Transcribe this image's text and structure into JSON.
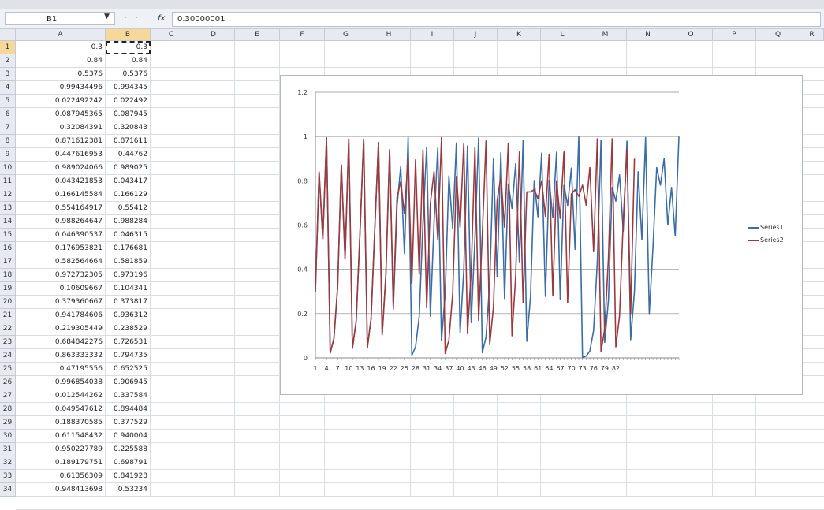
{
  "formula_bar": {
    "name_box": "B1",
    "fx_symbol": "fx",
    "formula_value": "0.30000001"
  },
  "columns": [
    "A",
    "B",
    "C",
    "D",
    "E",
    "F",
    "G",
    "H",
    "I",
    "J",
    "K",
    "L",
    "M",
    "N",
    "O",
    "P",
    "Q",
    "R"
  ],
  "selected_column": "B",
  "rows": [
    {
      "n": "1",
      "a": "0.3",
      "b": "0.3"
    },
    {
      "n": "2",
      "a": "0.84",
      "b": "0.84"
    },
    {
      "n": "3",
      "a": "0.5376",
      "b": "0.5376"
    },
    {
      "n": "4",
      "a": "0.99434496",
      "b": "0.994345"
    },
    {
      "n": "5",
      "a": "0.022492242",
      "b": "0.022492"
    },
    {
      "n": "6",
      "a": "0.087945365",
      "b": "0.087945"
    },
    {
      "n": "7",
      "a": "0.32084391",
      "b": "0.320843"
    },
    {
      "n": "8",
      "a": "0.871612381",
      "b": "0.871611"
    },
    {
      "n": "9",
      "a": "0.447616953",
      "b": "0.44762"
    },
    {
      "n": "10",
      "a": "0.989024066",
      "b": "0.989025"
    },
    {
      "n": "11",
      "a": "0.043421853",
      "b": "0.043417"
    },
    {
      "n": "12",
      "a": "0.166145584",
      "b": "0.166129"
    },
    {
      "n": "13",
      "a": "0.554164917",
      "b": "0.55412"
    },
    {
      "n": "14",
      "a": "0.988264647",
      "b": "0.988284"
    },
    {
      "n": "15",
      "a": "0.046390537",
      "b": "0.046315"
    },
    {
      "n": "16",
      "a": "0.176953821",
      "b": "0.176681"
    },
    {
      "n": "17",
      "a": "0.582564664",
      "b": "0.581859"
    },
    {
      "n": "18",
      "a": "0.972732305",
      "b": "0.973196"
    },
    {
      "n": "19",
      "a": "0.10609667",
      "b": "0.104341"
    },
    {
      "n": "20",
      "a": "0.379360667",
      "b": "0.373817"
    },
    {
      "n": "21",
      "a": "0.941784606",
      "b": "0.936312"
    },
    {
      "n": "22",
      "a": "0.219305449",
      "b": "0.238529"
    },
    {
      "n": "23",
      "a": "0.684842276",
      "b": "0.726531"
    },
    {
      "n": "24",
      "a": "0.863333332",
      "b": "0.794735"
    },
    {
      "n": "25",
      "a": "0.47195556",
      "b": "0.652525"
    },
    {
      "n": "26",
      "a": "0.996854038",
      "b": "0.906945"
    },
    {
      "n": "27",
      "a": "0.012544262",
      "b": "0.337584"
    },
    {
      "n": "28",
      "a": "0.049547612",
      "b": "0.894484"
    },
    {
      "n": "29",
      "a": "0.188370585",
      "b": "0.377529"
    },
    {
      "n": "30",
      "a": "0.611548432",
      "b": "0.940004"
    },
    {
      "n": "31",
      "a": "0.950227789",
      "b": "0.225588"
    },
    {
      "n": "32",
      "a": "0.189179751",
      "b": "0.698791"
    },
    {
      "n": "33",
      "a": "0.61356309",
      "b": "0.841928"
    },
    {
      "n": "34",
      "a": "0.948413698",
      "b": "0.53234"
    }
  ],
  "chart_data": {
    "type": "line",
    "y_ticks": [
      "0",
      "0.2",
      "0.4",
      "0.6",
      "0.8",
      "1",
      "1.2"
    ],
    "ylim": [
      0,
      1.2
    ],
    "x_tick_labels": [
      "1",
      "4",
      "7",
      "10",
      "13",
      "16",
      "19",
      "22",
      "25",
      "28",
      "31",
      "34",
      "37",
      "40",
      "43",
      "46",
      "49",
      "52",
      "55",
      "58",
      "61",
      "64",
      "67",
      "70",
      "73",
      "76",
      "79",
      "82"
    ],
    "grid": true,
    "legend_position": "right",
    "series": [
      {
        "name": "Series1",
        "color": "#3c6ea5",
        "values": [
          0.3,
          0.84,
          0.5376,
          0.99434496,
          0.022492242,
          0.087945365,
          0.32084391,
          0.871612381,
          0.447616953,
          0.989024066,
          0.043421853,
          0.166145584,
          0.554164917,
          0.988264647,
          0.046390537,
          0.176953821,
          0.582564664,
          0.972732305,
          0.10609667,
          0.379360667,
          0.941784606,
          0.219305449,
          0.684842276,
          0.863333332,
          0.47195556,
          0.996854038,
          0.012544262,
          0.049547612,
          0.188370585,
          0.611548432,
          0.950227789,
          0.189179751,
          0.61356309,
          0.948413698,
          0.0784,
          0.289,
          0.822,
          0.585,
          0.971,
          0.112,
          0.398,
          0.958,
          0.16,
          0.538,
          0.994,
          0.024,
          0.094,
          0.34,
          0.898,
          0.366,
          0.928,
          0.268,
          0.785,
          0.675,
          0.877,
          0.431,
          0.981,
          0.075,
          0.277,
          0.801,
          0.637,
          0.925,
          0.278,
          0.803,
          0.633,
          0.929,
          0.265,
          0.779,
          0.689,
          0.857,
          0.49,
          0.9995,
          0.002,
          0.008,
          0.032,
          0.124,
          0.434,
          0.982,
          0.07,
          0.26,
          0.77,
          0.708,
          0.827,
          0.572,
          0.979,
          0.082,
          0.301,
          0.841,
          0.535,
          0.995,
          0.2,
          0.5,
          0.86,
          0.78,
          0.9,
          0.6,
          0.77,
          0.55,
          1.0
        ]
      },
      {
        "name": "Series2",
        "color": "#9b3a3e",
        "values": [
          0.3,
          0.84,
          0.5376,
          0.994345,
          0.022492,
          0.087945,
          0.320843,
          0.871611,
          0.44762,
          0.989025,
          0.043417,
          0.166129,
          0.55412,
          0.988284,
          0.046315,
          0.176681,
          0.581859,
          0.973196,
          0.104341,
          0.373817,
          0.936312,
          0.238529,
          0.726531,
          0.794735,
          0.652525,
          0.906945,
          0.337584,
          0.894484,
          0.377529,
          0.940004,
          0.225588,
          0.698791,
          0.841928,
          0.53234,
          0.995,
          0.02,
          0.08,
          0.29,
          0.82,
          0.59,
          0.97,
          0.11,
          0.39,
          0.95,
          0.17,
          0.56,
          0.98,
          0.06,
          0.23,
          0.71,
          0.82,
          0.59,
          0.97,
          0.1,
          0.37,
          0.93,
          0.25,
          0.75,
          0.75,
          0.76,
          0.72,
          0.8,
          0.64,
          0.92,
          0.28,
          0.8,
          0.63,
          0.93,
          0.25,
          0.74,
          0.76,
          0.73,
          0.78,
          0.69,
          0.86,
          0.48,
          0.99,
          0.03,
          0.13,
          0.45,
          0.99,
          0.05,
          0.19,
          0.62,
          0.94,
          0.2,
          0.9
        ]
      }
    ]
  }
}
